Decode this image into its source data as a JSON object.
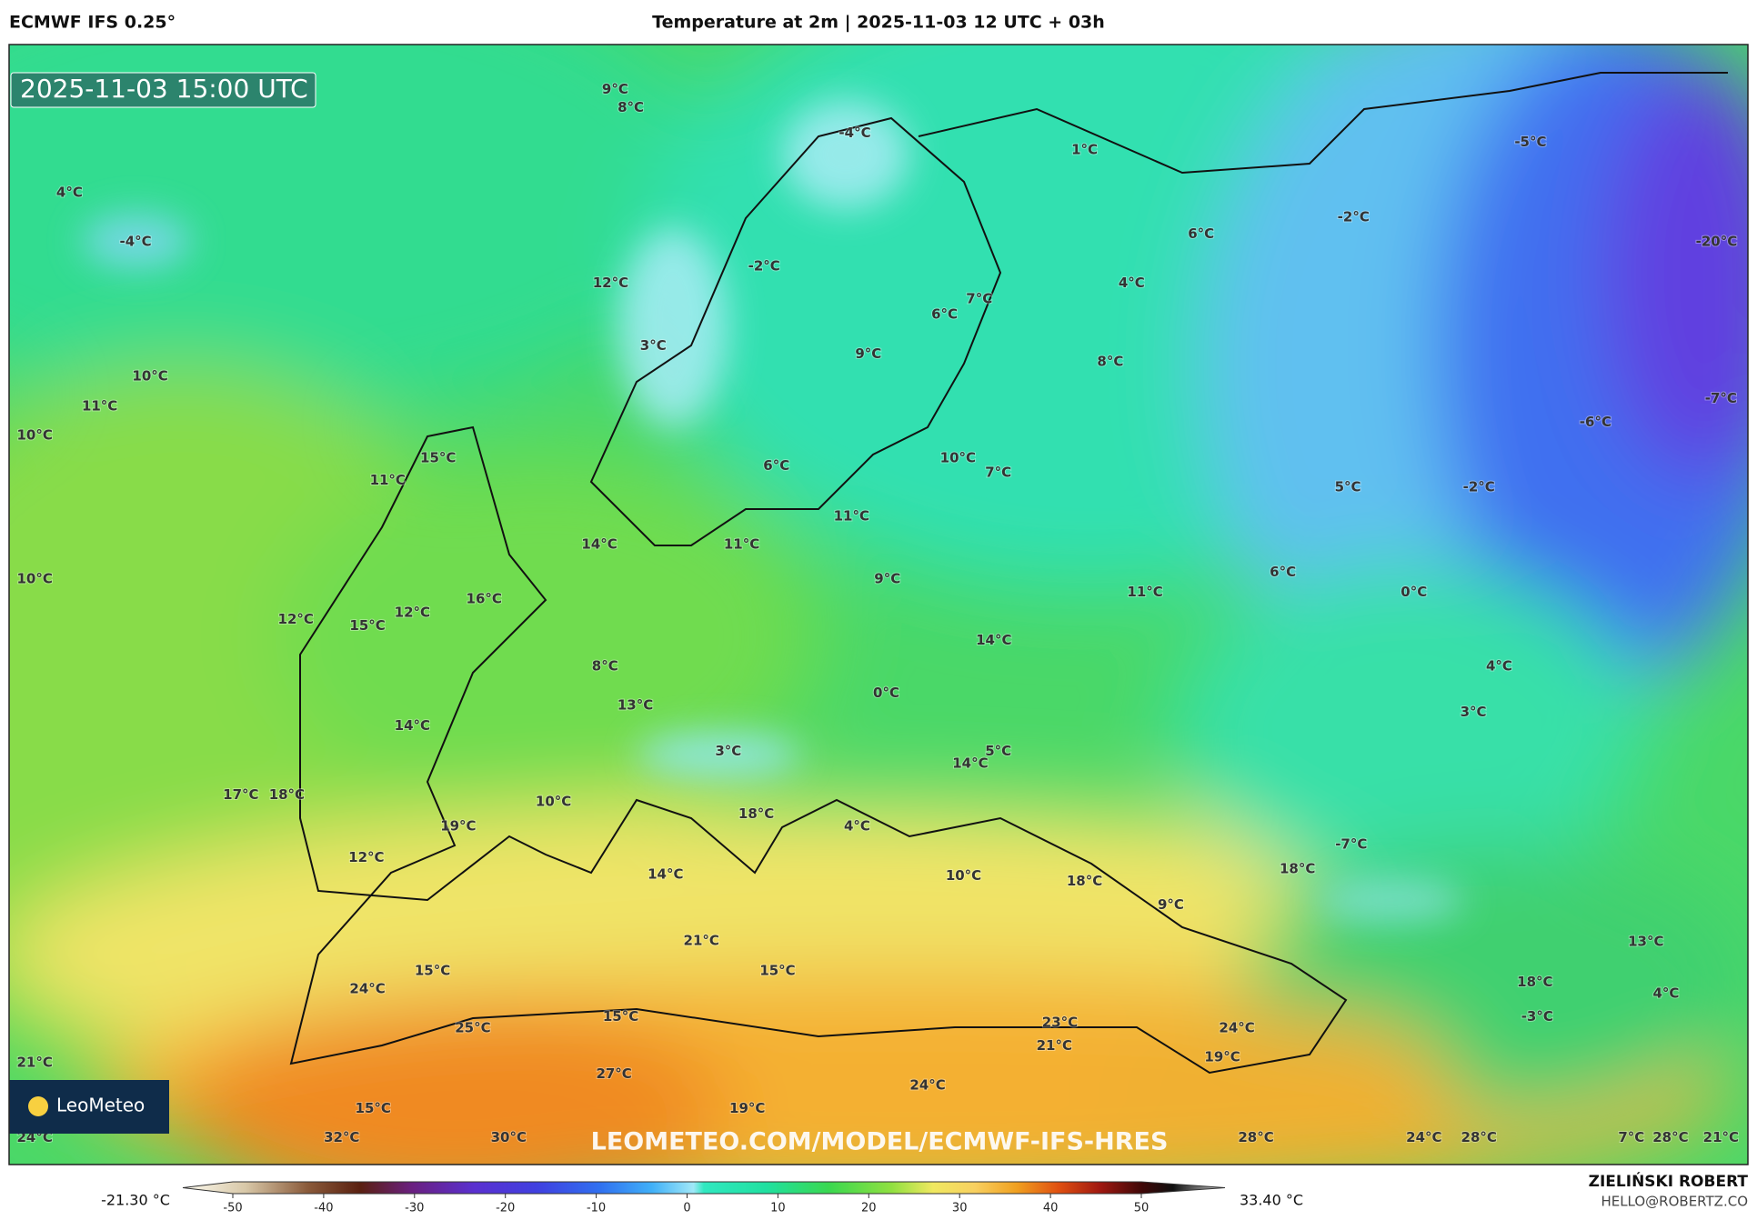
{
  "header": {
    "model": "ECMWF IFS 0.25°",
    "title": "Temperature at 2m | 2025-11-03 12 UTC + 03h"
  },
  "map": {
    "valid_time": "2025-11-03 15:00 UTC",
    "logo": "LeoMeteo",
    "watermark": "LEOMETEO.COM/MODEL/ECMWF-IFS-HRES",
    "temperature_labels": [
      "9°C",
      "8°C",
      "-4°C",
      "1°C",
      "-5°C",
      "4°C",
      "-4°C",
      "-2°C",
      "6°C",
      "-20°C",
      "-2°C",
      "12°C",
      "4°C",
      "7°C",
      "6°C",
      "3°C",
      "9°C",
      "8°C",
      "10°C",
      "11°C",
      "-7°C",
      "-6°C",
      "10°C",
      "15°C",
      "10°C",
      "6°C",
      "7°C",
      "11°C",
      "5°C",
      "-2°C",
      "11°C",
      "14°C",
      "11°C",
      "6°C",
      "10°C",
      "9°C",
      "11°C",
      "0°C",
      "16°C",
      "12°C",
      "12°C",
      "15°C",
      "14°C",
      "8°C",
      "4°C",
      "0°C",
      "13°C",
      "3°C",
      "14°C",
      "3°C",
      "5°C",
      "14°C",
      "17°C",
      "18°C",
      "10°C",
      "18°C",
      "4°C",
      "19°C",
      "-7°C",
      "12°C",
      "18°C",
      "14°C",
      "10°C",
      "18°C",
      "9°C",
      "21°C",
      "13°C",
      "15°C",
      "15°C",
      "18°C",
      "24°C",
      "4°C",
      "15°C",
      "-3°C",
      "23°C",
      "25°C",
      "24°C",
      "21°C",
      "19°C",
      "21°C",
      "27°C",
      "24°C",
      "15°C",
      "19°C",
      "24°C",
      "32°C",
      "30°C",
      "28°C",
      "24°C",
      "28°C",
      "7°C",
      "28°C",
      "21°C"
    ]
  },
  "colorbar": {
    "min_label": "-21.30 °C",
    "max_label": "33.40 °C",
    "ticks": [
      -50,
      -40,
      -30,
      -20,
      -10,
      0,
      10,
      20,
      30,
      40,
      50
    ],
    "range": [
      -50,
      50
    ]
  },
  "author": {
    "name": "ZIELIŃSKI ROBERT",
    "email": "HELLO@ROBERTZ.CO"
  }
}
